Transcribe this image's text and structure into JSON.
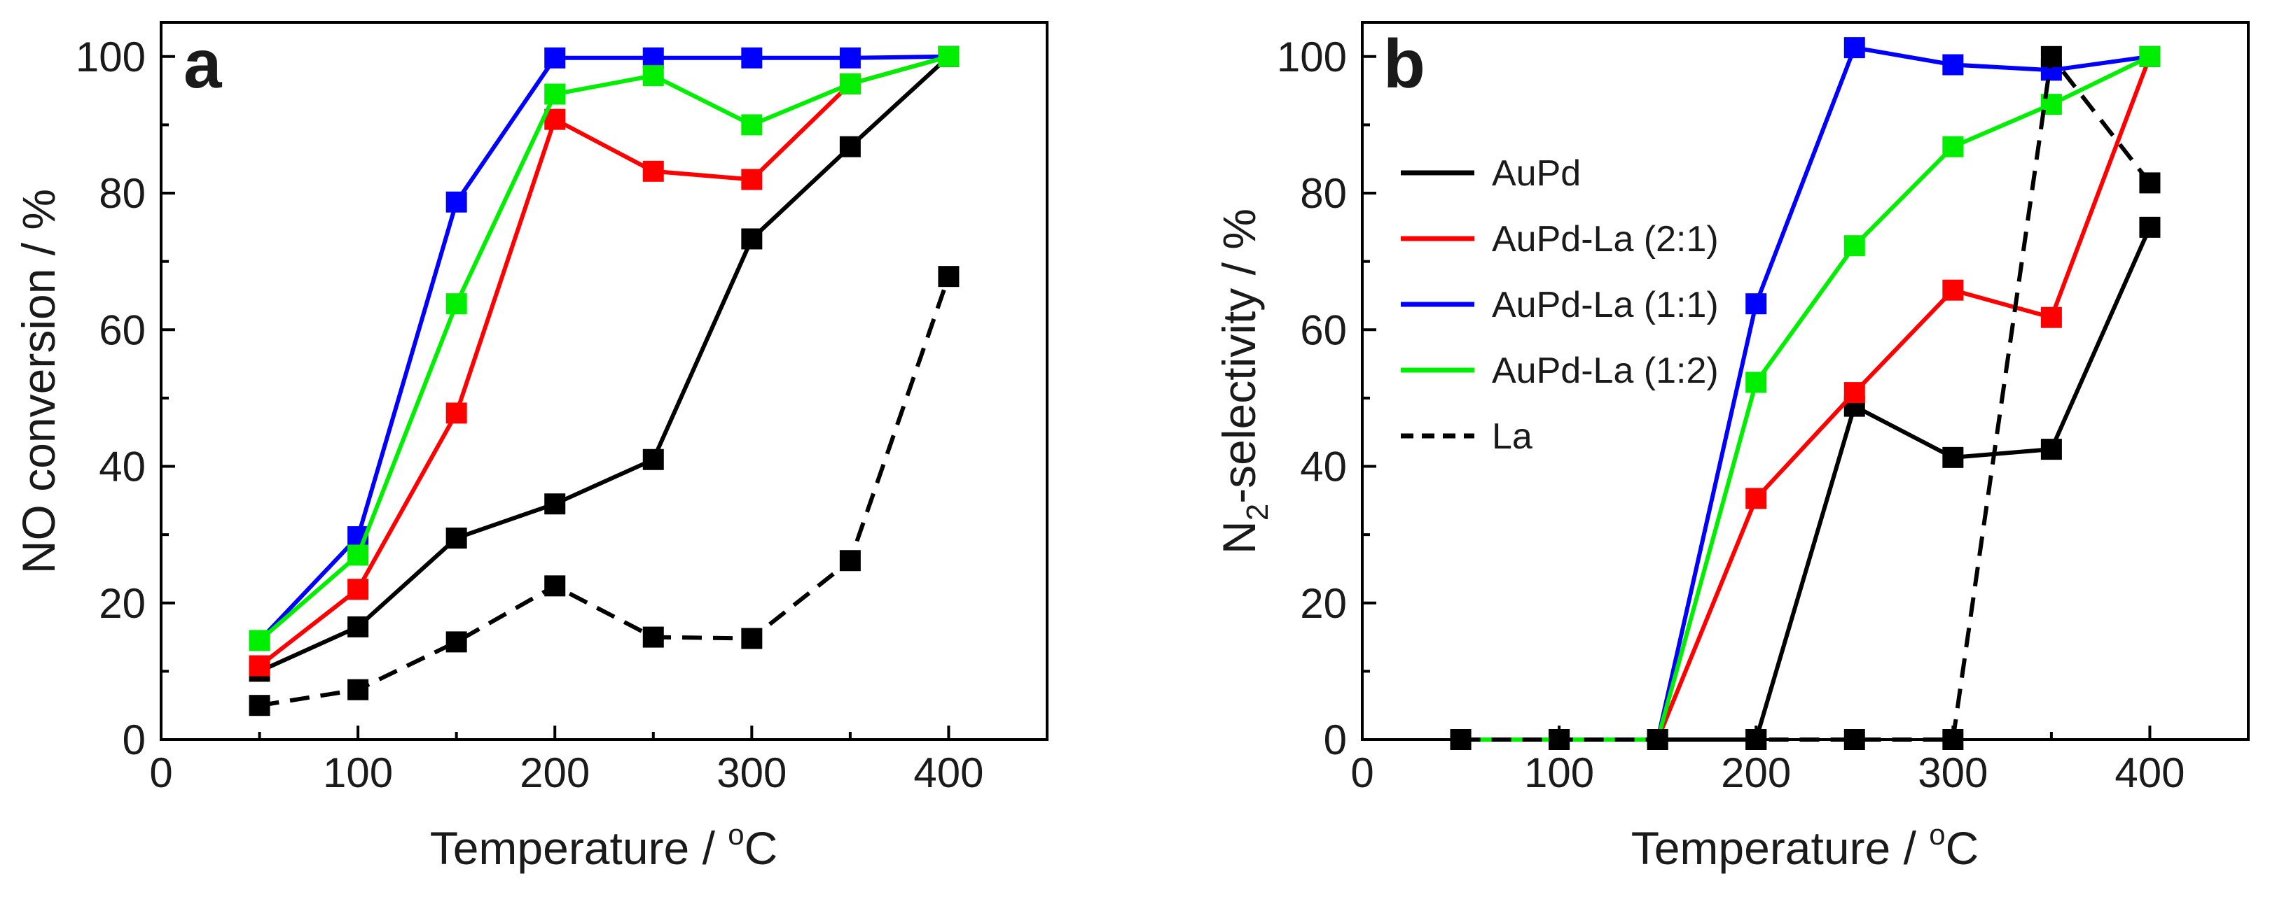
{
  "chart_data": [
    {
      "type": "line",
      "panel_label": "a",
      "xlabel": "Temperature / ",
      "xlabel_sup": "o",
      "xlabel_unit": "C",
      "ylabel": "NO conversion / %",
      "xlim": [
        0,
        450
      ],
      "ylim": [
        0,
        105
      ],
      "xticks": [
        0,
        100,
        200,
        300,
        400
      ],
      "yticks": [
        0,
        20,
        40,
        60,
        80,
        100
      ],
      "grid": false,
      "series": [
        {
          "name": "AuPd",
          "color": "#000000",
          "dash": false,
          "x": [
            50,
            100,
            150,
            200,
            250,
            300,
            350,
            400
          ],
          "values": [
            10,
            16.5,
            29.5,
            34.5,
            41,
            73.3,
            86.8,
            100
          ]
        },
        {
          "name": "AuPd-La (2:1)",
          "color": "#ff0000",
          "dash": false,
          "x": [
            50,
            100,
            150,
            200,
            250,
            300,
            350,
            400
          ],
          "values": [
            10.8,
            22,
            47.8,
            90.8,
            83.2,
            82,
            96,
            100
          ]
        },
        {
          "name": "AuPd-La (1:1)",
          "color": "#0000ff",
          "dash": false,
          "x": [
            50,
            100,
            150,
            200,
            250,
            300,
            350,
            400
          ],
          "values": [
            14.5,
            29.7,
            78.7,
            99.8,
            99.8,
            99.8,
            99.8,
            100
          ]
        },
        {
          "name": "AuPd-La (1:2)",
          "color": "#00ee00",
          "dash": false,
          "x": [
            50,
            100,
            150,
            200,
            250,
            300,
            350,
            400
          ],
          "values": [
            14.5,
            27,
            63.8,
            94.5,
            97.2,
            90,
            96,
            100
          ]
        },
        {
          "name": "La",
          "color": "#000000",
          "dash": true,
          "x": [
            50,
            100,
            150,
            200,
            250,
            300,
            350,
            400
          ],
          "values": [
            5,
            7.3,
            14.3,
            22.5,
            15,
            14.8,
            26.2,
            67.8
          ]
        }
      ]
    },
    {
      "type": "line",
      "panel_label": "b",
      "xlabel": "Temperature / ",
      "xlabel_sup": "o",
      "xlabel_unit": "C",
      "ylabel": "N",
      "ylabel_sub": "2",
      "ylabel_rest": "-selectivity / %",
      "xlim": [
        0,
        450
      ],
      "ylim": [
        0,
        105
      ],
      "xticks": [
        0,
        100,
        200,
        300,
        400
      ],
      "yticks": [
        0,
        20,
        40,
        60,
        80,
        100
      ],
      "grid": false,
      "legend_position": "upper-left",
      "series": [
        {
          "name": "AuPd",
          "color": "#000000",
          "dash": false,
          "x": [
            50,
            100,
            150,
            200,
            250,
            300,
            350,
            400
          ],
          "values": [
            0,
            0,
            0,
            0,
            48.8,
            41.3,
            42.5,
            75
          ],
          "markers": [
            true,
            true,
            true,
            true,
            true,
            true,
            true,
            true
          ]
        },
        {
          "name": "AuPd-La (2:1)",
          "color": "#ff0000",
          "dash": false,
          "x": [
            50,
            100,
            150,
            200,
            250,
            300,
            350,
            400
          ],
          "values": [
            0,
            0,
            0,
            35.3,
            50.8,
            65.8,
            61.8,
            100
          ],
          "markers": [
            false,
            false,
            false,
            true,
            true,
            true,
            true,
            true
          ]
        },
        {
          "name": "AuPd-La (1:1)",
          "color": "#0000ff",
          "dash": false,
          "x": [
            50,
            100,
            150,
            200,
            250,
            300,
            350,
            400
          ],
          "values": [
            0,
            0,
            0,
            63.8,
            101.3,
            98.8,
            98,
            100
          ],
          "markers": [
            false,
            false,
            false,
            true,
            true,
            true,
            true,
            true
          ]
        },
        {
          "name": "AuPd-La (1:2)",
          "color": "#00ee00",
          "dash": false,
          "x": [
            50,
            100,
            150,
            200,
            250,
            300,
            350,
            400
          ],
          "values": [
            0,
            0,
            0,
            52.3,
            72.3,
            86.8,
            93,
            100
          ],
          "markers": [
            false,
            false,
            false,
            true,
            true,
            true,
            true,
            true
          ]
        },
        {
          "name": "La",
          "color": "#000000",
          "dash": true,
          "x": [
            50,
            100,
            150,
            200,
            250,
            300,
            350,
            400
          ],
          "values": [
            0,
            0,
            0,
            0,
            0,
            0,
            100,
            81.5
          ],
          "markers": [
            true,
            true,
            true,
            true,
            true,
            true,
            true,
            true
          ]
        }
      ]
    }
  ]
}
